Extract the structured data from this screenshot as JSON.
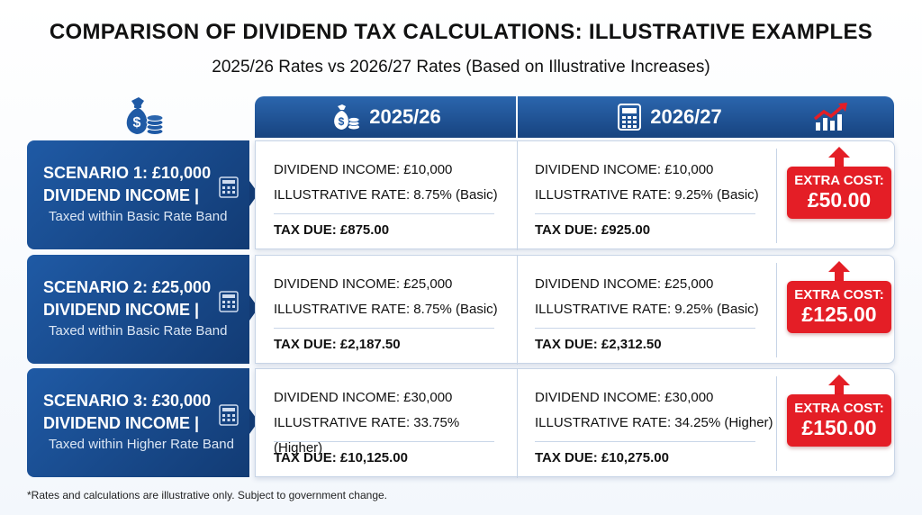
{
  "title": "COMPARISON OF DIVIDEND TAX CALCULATIONS: ILLUSTRATIVE EXAMPLES",
  "subtitle": "2025/26 Rates vs 2026/27 Rates (Based on Illustrative Increases)",
  "columns": {
    "col1": {
      "label": "2025/26",
      "icon": "money-bag-icon"
    },
    "col2": {
      "label": "2026/27",
      "icon": "calculator-icon",
      "extra_icon": "trend-up-chart-icon"
    }
  },
  "scenarios": [
    {
      "title": "SCENARIO 1: £10,000 DIVIDEND INCOME |",
      "subtitle": "Taxed within Basic Rate Band",
      "y2025": {
        "income": "DIVIDEND INCOME: £10,000",
        "rate": "ILLUSTRATIVE RATE: 8.75% (Basic)",
        "tax": "TAX DUE: £875.00"
      },
      "y2026": {
        "income": "DIVIDEND INCOME: £10,000",
        "rate": "ILLUSTRATIVE RATE: 9.25% (Basic)",
        "tax": "TAX DUE: £925.00"
      },
      "extra_label": "EXTRA COST:",
      "extra_value": "£50.00"
    },
    {
      "title": "SCENARIO 2: £25,000 DIVIDEND INCOME |",
      "subtitle": "Taxed within Basic Rate Band",
      "y2025": {
        "income": "DIVIDEND INCOME: £25,000",
        "rate": "ILLUSTRATIVE RATE: 8.75% (Basic)",
        "tax": "TAX DUE: £2,187.50"
      },
      "y2026": {
        "income": "DIVIDEND INCOME: £25,000",
        "rate": "ILLUSTRATIVE RATE: 9.25% (Basic)",
        "tax": "TAX DUE: £2,312.50"
      },
      "extra_label": "EXTRA COST:",
      "extra_value": "£125.00"
    },
    {
      "title": "SCENARIO 3: £30,000 DIVIDEND INCOME |",
      "subtitle": "Taxed within Higher Rate Band",
      "y2025": {
        "income": "DIVIDEND INCOME: £30,000",
        "rate": "ILLUSTRATIVE RATE: 33.75% (Higher)",
        "tax": "TAX DUE: £10,125.00"
      },
      "y2026": {
        "income": "DIVIDEND INCOME: £30,000",
        "rate": "ILLUSTRATIVE RATE: 34.25% (Higher)",
        "tax": "TAX DUE: £10,275.00"
      },
      "extra_label": "EXTRA COST:",
      "extra_value": "£150.00"
    }
  ],
  "footnote": "*Rates and calculations are illustrative only. Subject to government change.",
  "colors": {
    "navy": "#17437f",
    "blue": "#2b66ae",
    "red": "#e41e26"
  }
}
